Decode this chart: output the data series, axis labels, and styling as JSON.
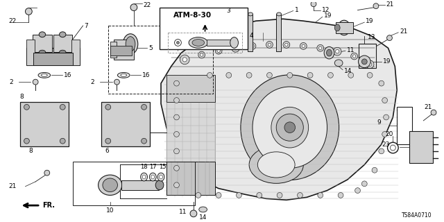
{
  "background_color": "#ffffff",
  "diagram_code": "TS84A0710",
  "atm_label": "ATM-8-30",
  "fr_label": "FR.",
  "line_color": "#1a1a1a",
  "gray_fill": "#d0d0d0",
  "light_gray": "#e8e8e8",
  "dark_gray": "#888888"
}
